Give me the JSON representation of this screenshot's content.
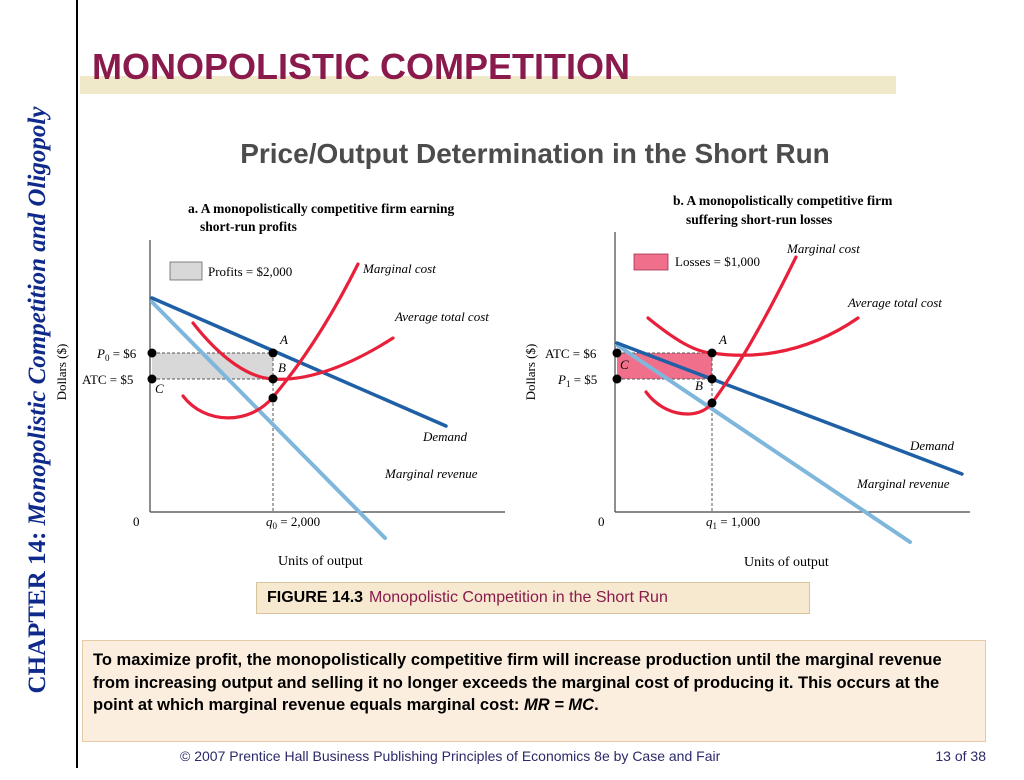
{
  "sidebar": {
    "chapter_label": "CHAPTER 14:",
    "chapter_title": "Monopolistic Competition and Oligopoly"
  },
  "slide": {
    "title": "MONOPOLISTIC COMPETITION",
    "subtitle": "Price/Output Determination in the Short Run"
  },
  "colors": {
    "title": "#8a1a4c",
    "sidebar_text": "#0f2a8a",
    "curve_red": "#e8203a",
    "demand": "#1f5fa6",
    "marginal_revenue": "#7fb7dc",
    "profit_fill": "#d8d8d8",
    "loss_fill": "#f0708c"
  },
  "panel_a": {
    "title_line1": "a. A monopolistically competitive firm earning",
    "title_line2": "short-run profits",
    "legend": "Profits = $2,000",
    "y_axis": "Dollars ($)",
    "x_axis": "Units of output",
    "origin": "0",
    "p0_label": "P",
    "p0_sub": "0",
    "p0_value": " = $6",
    "atc_label": "ATC = $5",
    "q0_label": "q",
    "q0_sub": "0",
    "q0_value": " = 2,000",
    "point_a": "A",
    "point_b": "B",
    "point_c": "C",
    "curve_mc": "Marginal cost",
    "curve_atc": "Average total cost",
    "curve_demand": "Demand",
    "curve_mr": "Marginal revenue"
  },
  "panel_b": {
    "title_line1": "b. A monopolistically competitive firm",
    "title_line2": "suffering short-run losses",
    "legend": "Losses = $1,000",
    "y_axis": "Dollars ($)",
    "x_axis": "Units of output",
    "origin": "0",
    "atc_label": "ATC = $6",
    "p1_label": "P",
    "p1_sub": "1",
    "p1_value": " = $5",
    "q1_label": "q",
    "q1_sub": "1",
    "q1_value": " = 1,000",
    "point_a": "A",
    "point_b": "B",
    "point_c": "C",
    "curve_mc": "Marginal cost",
    "curve_atc": "Average total cost",
    "curve_demand": "Demand",
    "curve_mr": "Marginal revenue"
  },
  "figure": {
    "number": "FIGURE 14.3",
    "caption": "Monopolistic Competition in the Short Run"
  },
  "note": {
    "text": "To maximize profit, the monopolistically competitive firm will increase production until the marginal revenue from increasing output and selling it no longer exceeds the marginal cost of producing it.  This occurs at the point at which marginal revenue equals marginal cost:",
    "formula": "MR = MC",
    "formula_end": "."
  },
  "footer": {
    "credit": "© 2007 Prentice Hall Business Publishing   Principles of Economics 8e by Case and Fair",
    "page": "13 of 38"
  }
}
